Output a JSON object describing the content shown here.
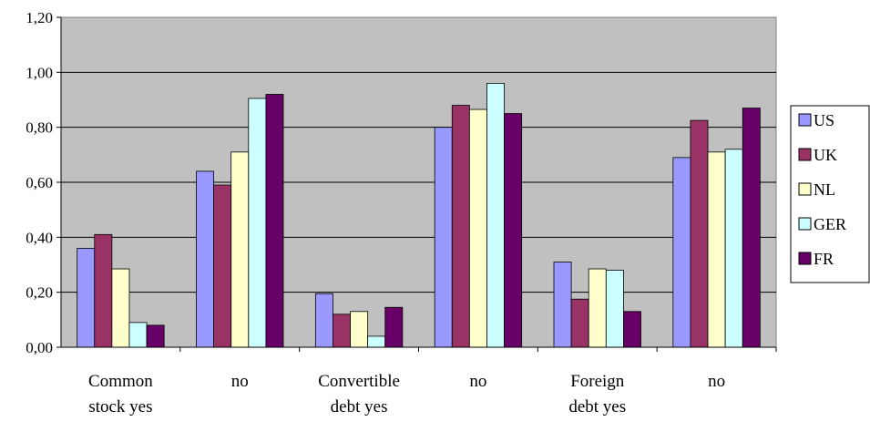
{
  "chart_data": {
    "type": "bar",
    "categories": [
      [
        "Common",
        "stock yes"
      ],
      [
        "no"
      ],
      [
        "Convertible",
        "debt yes"
      ],
      [
        "no"
      ],
      [
        "Foreign",
        "debt yes"
      ],
      [
        "no"
      ]
    ],
    "series": [
      {
        "name": "US",
        "color": "#9999ff",
        "values": [
          0.36,
          0.64,
          0.195,
          0.8,
          0.31,
          0.69
        ]
      },
      {
        "name": "UK",
        "color": "#993366",
        "values": [
          0.41,
          0.59,
          0.12,
          0.88,
          0.175,
          0.825
        ]
      },
      {
        "name": "NL",
        "color": "#ffffcc",
        "values": [
          0.285,
          0.71,
          0.13,
          0.865,
          0.285,
          0.71
        ]
      },
      {
        "name": "GER",
        "color": "#ccffff",
        "values": [
          0.09,
          0.905,
          0.04,
          0.96,
          0.28,
          0.72
        ]
      },
      {
        "name": "FR",
        "color": "#660066",
        "values": [
          0.08,
          0.92,
          0.145,
          0.85,
          0.13,
          0.87
        ]
      }
    ],
    "y_ticks": [
      "0,00",
      "0,20",
      "0,40",
      "0,60",
      "0,80",
      "1,00",
      "1,20"
    ],
    "ylim": [
      0,
      1.2
    ],
    "grid": true,
    "plot_background": "#c0c0c0",
    "legend_position": "right",
    "title": "",
    "xlabel": "",
    "ylabel": ""
  }
}
